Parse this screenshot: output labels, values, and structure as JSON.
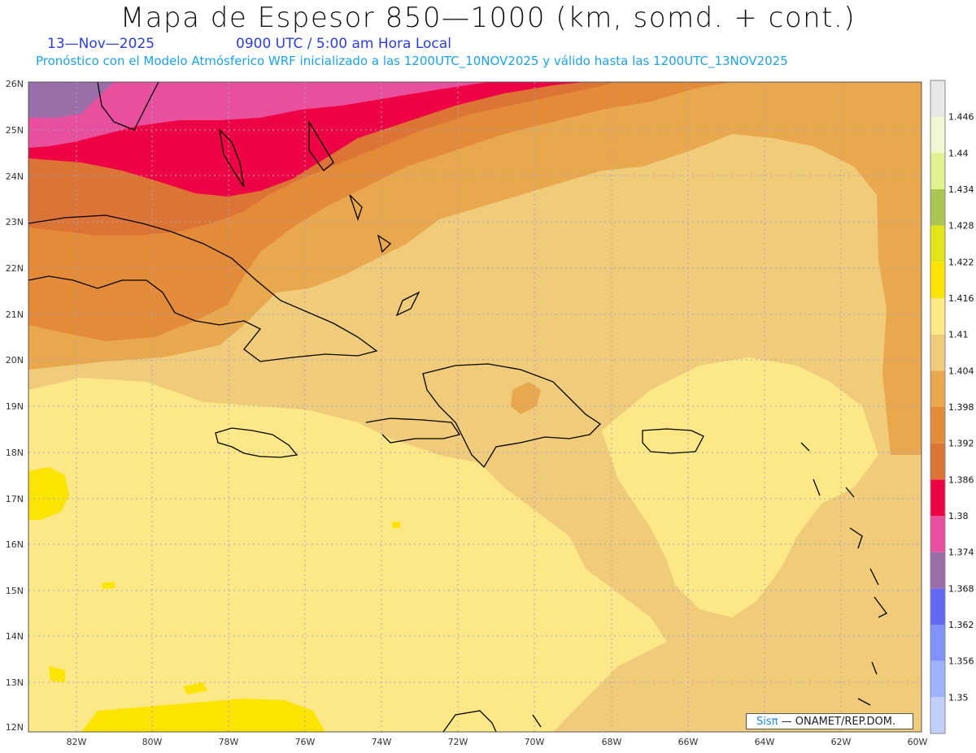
{
  "title": "Mapa de Espesor 850—1000 (km, somd. + cont.)",
  "date": "13—Nov—2025",
  "time_line": "0900 UTC / 5:00 am Hora Local",
  "subtitle": "Pronóstico con el Modelo Atmósferico WRF inicializado a las 1200UTC_10NOV2025 y válido hasta las  1200UTC_13NOV2025",
  "credit": {
    "brand": "Sisπ",
    "text": "— ONAMET/REP.DOM."
  },
  "lat_labels": [
    "26N",
    "25N",
    "24N",
    "23N",
    "22N",
    "21N",
    "20N",
    "19N",
    "18N",
    "17N",
    "16N",
    "15N",
    "14N",
    "13N",
    "12N"
  ],
  "lon_labels": [
    "82W",
    "80W",
    "78W",
    "76W",
    "74W",
    "72W",
    "70W",
    "68W",
    "66W",
    "64W",
    "62W",
    "60W"
  ],
  "colorbar": {
    "colors": [
      "#c3cffb",
      "#9db3fb",
      "#7f93fb",
      "#6469f5",
      "#9a6ea8",
      "#e8509e",
      "#ee0445",
      "#dc7435",
      "#e48b3a",
      "#eaa84e",
      "#f0cb7a",
      "#fde888",
      "#fbe500",
      "#e4e516",
      "#acc452",
      "#e0f18d",
      "#f2f6d3",
      "#e8e8e8"
    ],
    "labels": [
      "1.35",
      "1.356",
      "1.362",
      "1.368",
      "1.374",
      "1.38",
      "1.386",
      "1.392",
      "1.398",
      "1.404",
      "1.41",
      "1.416",
      "1.422",
      "1.428",
      "1.434",
      "1.44",
      "1.446"
    ]
  }
}
